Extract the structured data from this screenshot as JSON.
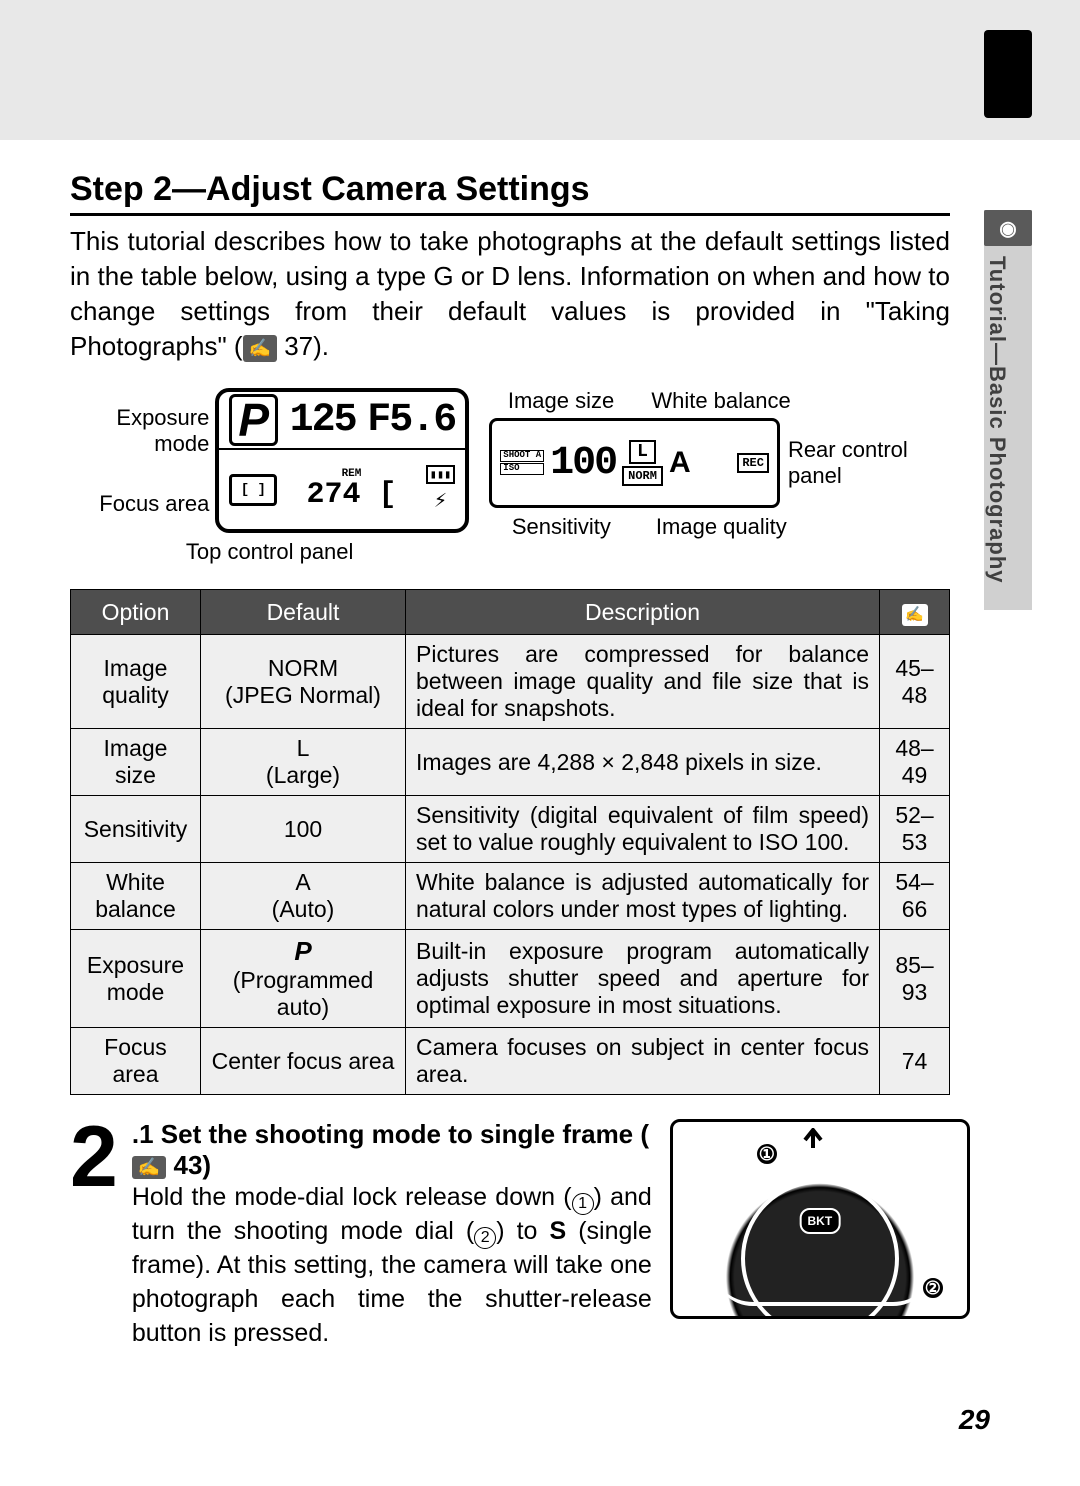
{
  "side_tab": {
    "icon_glyph": "◉",
    "text": "Tutorial—Basic Photography"
  },
  "step_title": "Step 2—Adjust Camera Settings",
  "intro_before_icon": "This tutorial describes how to take photographs at the default settings listed in the table below, using a type G or D lens.  Information on when and how to change settings from their default values is provided in \"Taking Photographs\" (",
  "intro_page_ref": "37",
  "intro_after_icon": ").",
  "top_panel": {
    "left_labels": [
      "Exposure mode",
      "Focus area"
    ],
    "p_glyph": "P",
    "shutter": "125",
    "aperture": "F5.6",
    "rem_label": "REM",
    "rem_value": "274 [",
    "battery_glyph": "▮▮▮",
    "focus_glyph": "[ ]",
    "flash_glyph": "⚡",
    "caption": "Top control panel"
  },
  "rear_panel": {
    "top_labels": [
      "Image size",
      "White balance"
    ],
    "shoot_label": "SHOOT A",
    "iso_label": "ISO",
    "iso_value": "100",
    "size_glyph": "L",
    "norm_label": "NORM",
    "wb_glyph": "A",
    "rec_glyph": "REC",
    "bottom_labels": [
      "Sensitivity",
      "Image quality"
    ],
    "side_label": "Rear control panel"
  },
  "table": {
    "headers": [
      "Option",
      "Default",
      "Description"
    ],
    "header_icon": "⬚",
    "rows": [
      {
        "option": "Image quality",
        "default_main": "NORM",
        "default_sub": "(JPEG Normal)",
        "desc": "Pictures are compressed for balance between image quality and file size that is ideal for snapshots.",
        "ref": "45–48"
      },
      {
        "option": "Image size",
        "default_main": "L",
        "default_sub": "(Large)",
        "desc": "Images are 4,288 × 2,848 pixels in size.",
        "ref": "48–49"
      },
      {
        "option": "Sensitivity",
        "default_main": "100",
        "default_sub": "",
        "desc": "Sensitivity (digital equivalent of film speed) set to value roughly equivalent to ISO 100.",
        "ref": "52–53"
      },
      {
        "option": "White balance",
        "default_main": "A",
        "default_sub": "(Auto)",
        "desc": "White balance is adjusted automatically for natural colors under most types of lighting.",
        "ref": "54–66"
      },
      {
        "option": "Exposure mode",
        "default_main": "P",
        "default_sub": "(Programmed auto)",
        "desc": "Built-in exposure program automatically adjusts shutter speed and aperture for optimal exposure in most situations.",
        "ref": "85–93",
        "p_style": true
      },
      {
        "option": "Focus area",
        "default_main": "Center focus area",
        "default_sub": "",
        "desc": "Camera focuses on subject in center focus area.",
        "ref": "74"
      }
    ]
  },
  "substep": {
    "big_number": "2",
    "index": ".1",
    "title_before": "Set the shooting mode to single frame (",
    "title_ref": "43",
    "title_after": ")",
    "body_1": "Hold the mode-dial lock release down (",
    "c1": "1",
    "body_2": ") and turn the shooting mode dial (",
    "c2": "2",
    "body_3": ") to ",
    "s_glyph": "S",
    "body_4": " (single frame).  At this setting, the camera will take one photograph each time the shutter-release button is pressed."
  },
  "page_number": "29",
  "colors": {
    "header_bg": "#4e4e4e",
    "row_bg": "#efefef",
    "top_bar": "#e8e8e8",
    "side_tab": "#d0d0d0",
    "icon_bg": "#5a5a5a"
  }
}
